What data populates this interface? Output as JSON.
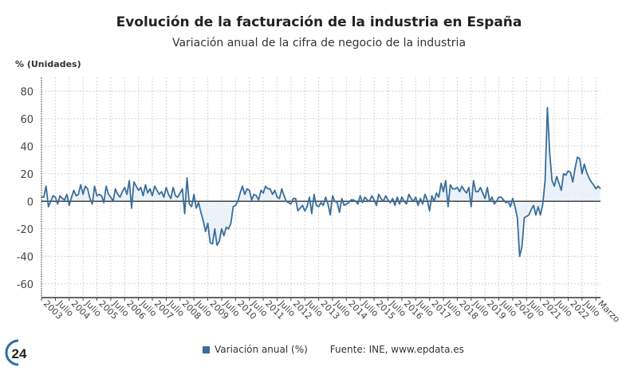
{
  "chart_data": {
    "type": "area",
    "title": "Evolución de la facturación de la industria en España",
    "subtitle": "Variación anual de la cifra de negocio de la industria",
    "ylabel": "% (Unidades)",
    "xlabel": "",
    "ylim": [
      -70,
      90
    ],
    "yticks": [
      -60,
      -40,
      -20,
      0,
      20,
      40,
      60,
      80
    ],
    "grid": true,
    "legend_position": "bottom",
    "x_start": "2003-01",
    "x_end": "2023-03",
    "x_frequency": "monthly",
    "xtick_labels": [
      "2003",
      "Julio",
      "2004",
      "Julio",
      "2005",
      "Julio",
      "2006",
      "Julio",
      "2007",
      "Julio",
      "2008",
      "Julio",
      "2009",
      "Julio",
      "2010",
      "Julio",
      "2011",
      "Julio",
      "2012",
      "Julio",
      "2013",
      "Julio",
      "2014",
      "Julio",
      "2015",
      "Julio",
      "2016",
      "Julio",
      "2017",
      "Julio",
      "2018",
      "Julio",
      "2019",
      "Julio",
      "2020",
      "Julio",
      "2021",
      "Julio",
      "2022",
      "Julio",
      "Marzo"
    ],
    "series": [
      {
        "name": "Variación anual (%)",
        "color": "#3a6e99",
        "fill": "#e6eff7",
        "values": [
          3,
          3,
          11,
          -4,
          0,
          4,
          3,
          -2,
          4,
          2,
          1,
          5,
          -3,
          3,
          8,
          4,
          5,
          12,
          5,
          11,
          9,
          2,
          -2,
          11,
          4,
          5,
          4,
          -1,
          11,
          5,
          3,
          0,
          9,
          5,
          3,
          7,
          10,
          5,
          15,
          -5,
          14,
          11,
          8,
          10,
          4,
          12,
          6,
          9,
          4,
          11,
          8,
          5,
          7,
          3,
          10,
          5,
          2,
          10,
          4,
          3,
          6,
          9,
          -9,
          17,
          -2,
          -4,
          5,
          -5,
          -1,
          -8,
          -14,
          -22,
          -16,
          -30,
          -31,
          -20,
          -32,
          -29,
          -20,
          -25,
          -19,
          -20,
          -16,
          -4,
          -3,
          0,
          6,
          11,
          5,
          9,
          8,
          1,
          5,
          4,
          1,
          8,
          6,
          11,
          9,
          9,
          5,
          8,
          3,
          2,
          9,
          4,
          0,
          -1,
          -2,
          2,
          2,
          -7,
          -5,
          -3,
          -7,
          -4,
          3,
          -9,
          5,
          -3,
          -4,
          -1,
          -3,
          3,
          -2,
          -10,
          4,
          0,
          -1,
          -8,
          2,
          -3,
          -2,
          -1,
          1,
          1,
          0,
          -2,
          4,
          -1,
          3,
          1,
          0,
          4,
          1,
          -3,
          5,
          2,
          0,
          4,
          1,
          -1,
          2,
          -3,
          3,
          -2,
          3,
          0,
          -2,
          5,
          2,
          0,
          3,
          -3,
          2,
          -2,
          5,
          1,
          -7,
          4,
          0,
          6,
          3,
          13,
          7,
          15,
          -4,
          12,
          9,
          9,
          10,
          7,
          11,
          8,
          6,
          10,
          -4,
          15,
          7,
          7,
          10,
          6,
          2,
          10,
          0,
          3,
          -2,
          0,
          3,
          3,
          1,
          -1,
          0,
          -4,
          2,
          -4,
          -12,
          -40,
          -33,
          -12,
          -11,
          -10,
          -6,
          -3,
          -10,
          -4,
          -10,
          -2,
          15,
          68,
          35,
          15,
          11,
          18,
          13,
          8,
          20,
          19,
          22,
          21,
          14,
          24,
          32,
          31,
          20,
          27,
          21,
          17,
          14,
          12,
          9,
          11,
          9
        ]
      }
    ]
  },
  "legend": {
    "label": "Variación anual (%)"
  },
  "source": "Fuente: INE, www.epdata.es",
  "logo_text": "24"
}
